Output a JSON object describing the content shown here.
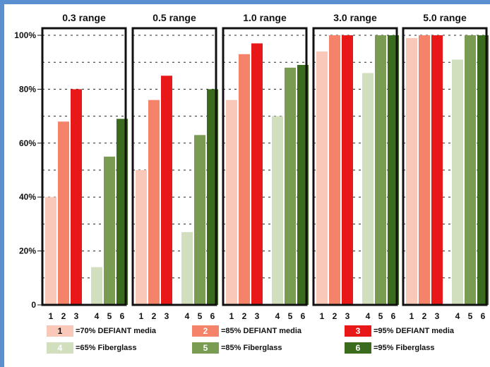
{
  "chart_data": {
    "type": "bar",
    "ylim": [
      0,
      100
    ],
    "y_ticks": [
      "0",
      "20%",
      "40%",
      "60%",
      "80%",
      "100%"
    ],
    "grid": true,
    "legend_position": "bottom",
    "categories": [
      "1",
      "2",
      "3",
      "4",
      "5",
      "6"
    ],
    "panels": [
      {
        "title": "0.3 range",
        "values": [
          40,
          68,
          80,
          14,
          55,
          69
        ]
      },
      {
        "title": "0.5 range",
        "values": [
          50,
          76,
          85,
          27,
          63,
          80
        ]
      },
      {
        "title": "1.0 range",
        "values": [
          76,
          93,
          97,
          70,
          88,
          89
        ]
      },
      {
        "title": "3.0 range",
        "values": [
          94,
          100,
          100,
          86,
          100,
          100
        ]
      },
      {
        "title": "5.0 range",
        "values": [
          99,
          100,
          100,
          91,
          100,
          100
        ]
      }
    ],
    "series": [
      {
        "key": "1",
        "name": "=70% DEFIANT media",
        "color": "#f9c8b8"
      },
      {
        "key": "2",
        "name": "=85% DEFIANT media",
        "color": "#f4836a"
      },
      {
        "key": "3",
        "name": "=95% DEFIANT media",
        "color": "#e81818"
      },
      {
        "key": "4",
        "name": "=65% Fiberglass",
        "color": "#d2dfbf"
      },
      {
        "key": "5",
        "name": "=85% Fiberglass",
        "color": "#7a9b52"
      },
      {
        "key": "6",
        "name": "=95% Fiberglass",
        "color": "#3b6b1c"
      }
    ]
  }
}
